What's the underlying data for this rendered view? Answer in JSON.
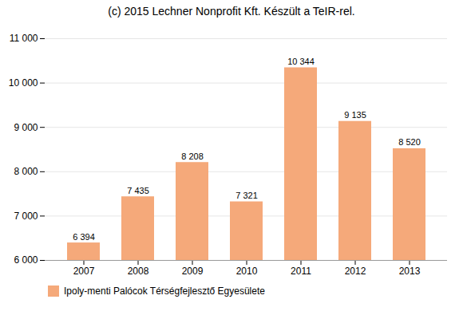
{
  "chart_data": {
    "type": "bar",
    "title": "(c) 2015 Lechner Nonprofit Kft. Készült a TeIR-rel.",
    "categories": [
      "2007",
      "2008",
      "2009",
      "2010",
      "2011",
      "2012",
      "2013"
    ],
    "series": [
      {
        "name": "Ipoly-menti Palócok Térségfejlesztő Egyesülete",
        "color": "#F5A97A",
        "values": [
          6394,
          7435,
          8208,
          7321,
          10344,
          9135,
          8520
        ],
        "value_labels": [
          "6 394",
          "7 435",
          "8 208",
          "7 321",
          "10 344",
          "9 135",
          "8 520"
        ]
      }
    ],
    "ylim": [
      6000,
      11000
    ],
    "yticks": [
      {
        "value": 6000,
        "label": "6 000"
      },
      {
        "value": 7000,
        "label": "7 000"
      },
      {
        "value": 8000,
        "label": "8 000"
      },
      {
        "value": 9000,
        "label": "9 000"
      },
      {
        "value": 10000,
        "label": "10 000"
      },
      {
        "value": 11000,
        "label": "11 000"
      }
    ],
    "grid": true,
    "data_labels": true,
    "legend": "lower left"
  }
}
